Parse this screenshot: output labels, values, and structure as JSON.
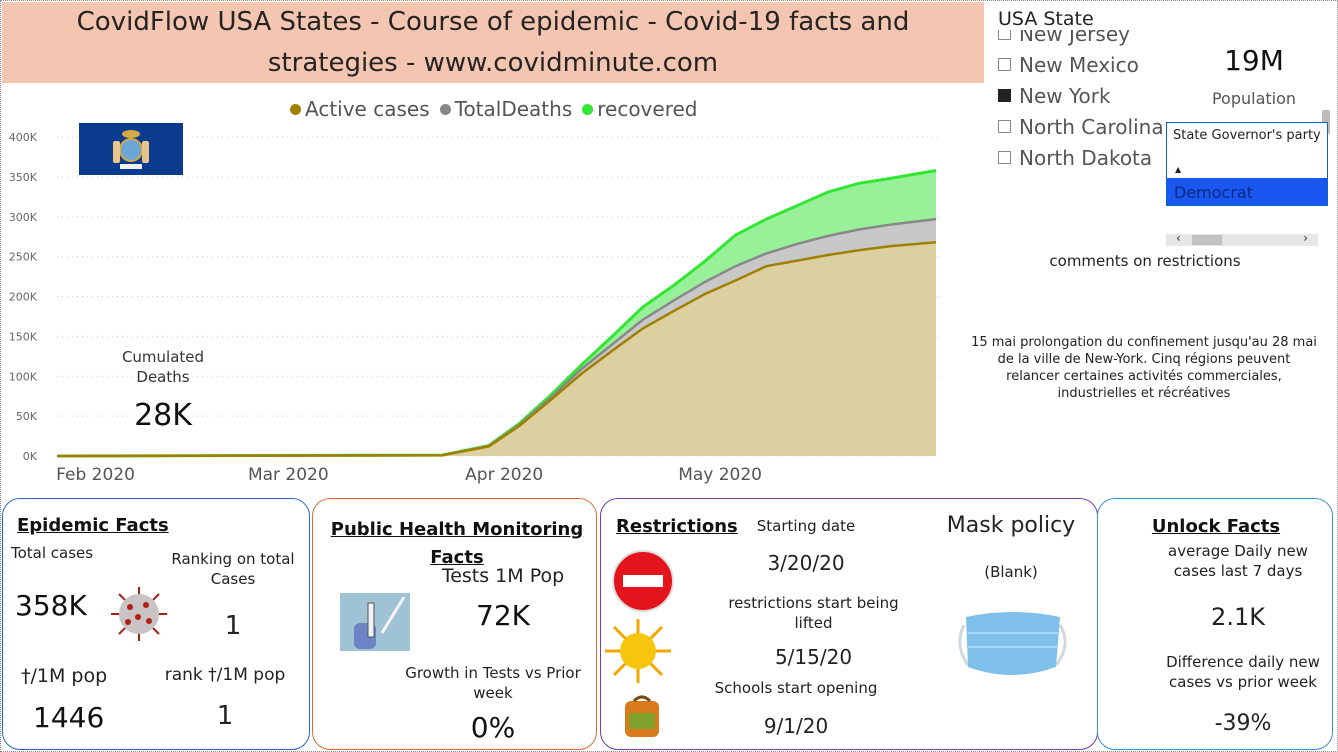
{
  "header": {
    "title": "CovidFlow USA States - Course of epidemic - Covid-19 facts and strategies - www.covidminute.com"
  },
  "chart_data": {
    "type": "area",
    "legend": [
      {
        "name": "Active cases",
        "color": "#a08000"
      },
      {
        "name": "TotalDeaths",
        "color": "#888888"
      },
      {
        "name": "recovered",
        "color": "#33e633"
      }
    ],
    "x_tick_labels": [
      "Feb 2020",
      "Mar 2020",
      "Apr 2020",
      "May 2020"
    ],
    "y_tick_labels": [
      "0K",
      "50K",
      "100K",
      "150K",
      "200K",
      "250K",
      "300K",
      "350K",
      "400K"
    ],
    "ylim": [
      0,
      400000
    ],
    "x_range_days": [
      0,
      114
    ],
    "series": [
      {
        "name": "Active cases",
        "color": "#a08000",
        "fill": "#ddd0a0",
        "x": [
          0,
          50,
          56,
          60,
          64,
          68,
          72,
          76,
          80,
          84,
          88,
          92,
          96,
          100,
          104,
          108,
          114
        ],
        "values": [
          0,
          1000,
          12000,
          38000,
          70000,
          103000,
          132000,
          160000,
          182000,
          203000,
          220000,
          238000,
          245000,
          252000,
          258000,
          263000,
          268000
        ]
      },
      {
        "name": "TotalDeaths",
        "color": "#888888",
        "fill": "#c8c8c8",
        "x": [
          0,
          50,
          56,
          60,
          64,
          68,
          72,
          76,
          80,
          84,
          88,
          92,
          96,
          100,
          104,
          108,
          114
        ],
        "values": [
          0,
          1050,
          12500,
          39500,
          73000,
          109000,
          140000,
          171000,
          195000,
          218000,
          238000,
          254000,
          266000,
          276000,
          284000,
          290000,
          297000
        ]
      },
      {
        "name": "recovered",
        "color": "#33e633",
        "fill": "#98f198",
        "x": [
          0,
          50,
          56,
          60,
          64,
          68,
          72,
          76,
          80,
          84,
          88,
          92,
          96,
          100,
          104,
          108,
          114
        ],
        "values": [
          0,
          1100,
          13000,
          41000,
          76000,
          114000,
          150000,
          187000,
          214000,
          244000,
          277000,
          297000,
          314000,
          331000,
          342000,
          348000,
          358000
        ]
      }
    ]
  },
  "flag": {
    "name": "New York state flag"
  },
  "cumulated_deaths": {
    "label": "Cumulated Deaths",
    "value": "28K"
  },
  "state_slicer": {
    "title": "USA State",
    "items": [
      {
        "label": "New Jersey",
        "checked": false
      },
      {
        "label": "New Mexico",
        "checked": false
      },
      {
        "label": "New York",
        "checked": true
      },
      {
        "label": "North Carolina",
        "checked": false
      },
      {
        "label": "North Dakota",
        "checked": false
      }
    ]
  },
  "population": {
    "value": "19M",
    "label": "Population"
  },
  "governor": {
    "title": "State Governor's party",
    "selected": "Democrat"
  },
  "comments": {
    "title": "comments on restrictions",
    "text": "15 mai prolongation du confinement jusqu'au 28 mai de la ville de New-York. Cinq régions peuvent relancer certaines activités commerciales, industrielles et récréatives"
  },
  "epidemic_facts": {
    "title": "Epidemic Facts",
    "total_cases_label": "Total cases",
    "total_cases_value": "358K",
    "ranking_label": "Ranking on total Cases",
    "ranking_value": "1",
    "deaths_per_m_label": "†/1M pop",
    "deaths_per_m_value": "1446",
    "rank_deaths_label": "rank †/1M pop",
    "rank_deaths_value": "1"
  },
  "health_monitoring": {
    "title": "Public Health Monitoring Facts",
    "tests_label": "Tests 1M Pop",
    "tests_value": "72K",
    "growth_label": "Growth in Tests vs Prior week",
    "growth_value": "0%"
  },
  "restrictions": {
    "title": "Restrictions",
    "start_label": "Starting date",
    "start_value": "3/20/20",
    "lifted_label": "restrictions start being lifted",
    "lifted_value": "5/15/20",
    "schools_label": "Schools start opening",
    "schools_value": "9/1/20",
    "mask_title": "Mask policy",
    "mask_value": "(Blank)"
  },
  "unlock_facts": {
    "title": "Unlock Facts",
    "avg_label": "average Daily new cases last 7 days",
    "avg_value": "2.1K",
    "diff_label": "Difference daily new cases vs prior week",
    "diff_value": "-39%"
  }
}
